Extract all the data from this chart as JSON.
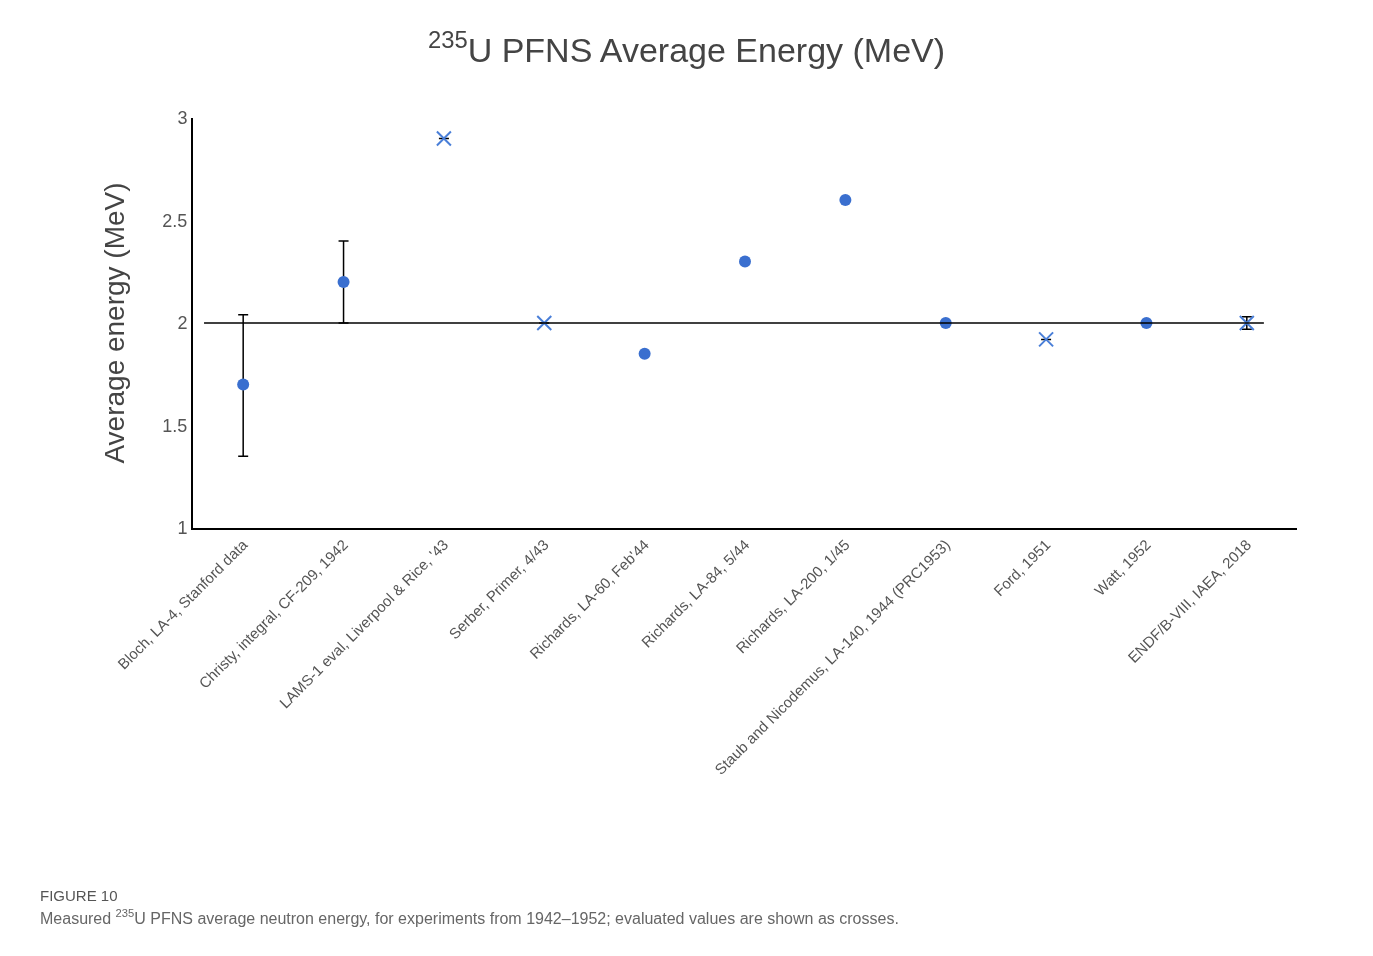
{
  "chart_data": {
    "type": "scatter",
    "title": "$^{235}$U PFNS Average Energy (MeV)",
    "ylabel": "Average energy (MeV)",
    "categories": [
      "Bloch, LA-4, Stanford data",
      "Christy, integral, CF-209, 1942",
      "LAMS-1 eval, Liverpool & Rice, '43",
      "Serber, Primer, 4/43",
      "Richards, LA-60, Feb'44",
      "Richards, LA-84, 5/44",
      "Richards, LA-200, 1/45",
      "Staub and Nicodemus, LA-140, 1944 (PRC1953)",
      "Ford, 1951",
      "Watt, 1952",
      "ENDF/B-VIII, IAEA, 2018"
    ],
    "series": [
      {
        "color": "#3a6fcf",
        "marker": "circle",
        "values": [
          1.7,
          2.2,
          null,
          null,
          1.85,
          2.3,
          2.6,
          2.0,
          null,
          2.0,
          null
        ],
        "errors": [
          [
            1.35,
            2.04
          ],
          [
            2.0,
            2.4
          ],
          null,
          null,
          null,
          null,
          null,
          null,
          null,
          null,
          null
        ]
      },
      {
        "color": "#4a7fd8",
        "marker": "cross",
        "values": [
          null,
          null,
          2.9,
          2.0,
          null,
          null,
          null,
          null,
          1.92,
          null,
          2.0
        ],
        "errors": [
          null,
          null,
          null,
          null,
          null,
          null,
          null,
          null,
          null,
          null,
          [
            1.97,
            2.03
          ]
        ]
      }
    ],
    "ylim": [
      1,
      3
    ],
    "yticks": [
      1,
      1.5,
      2,
      2.5,
      3
    ],
    "grid": false,
    "ref_lines": [
      {
        "axis": "y",
        "value": 2,
        "color": "#000000"
      }
    ],
    "annotations": [
      "FIGURE 10",
      "Measured $^{235}$U PFNS average neutron energy, for experiments from 1942–1952; evaluated values are shown as crosses."
    ]
  }
}
